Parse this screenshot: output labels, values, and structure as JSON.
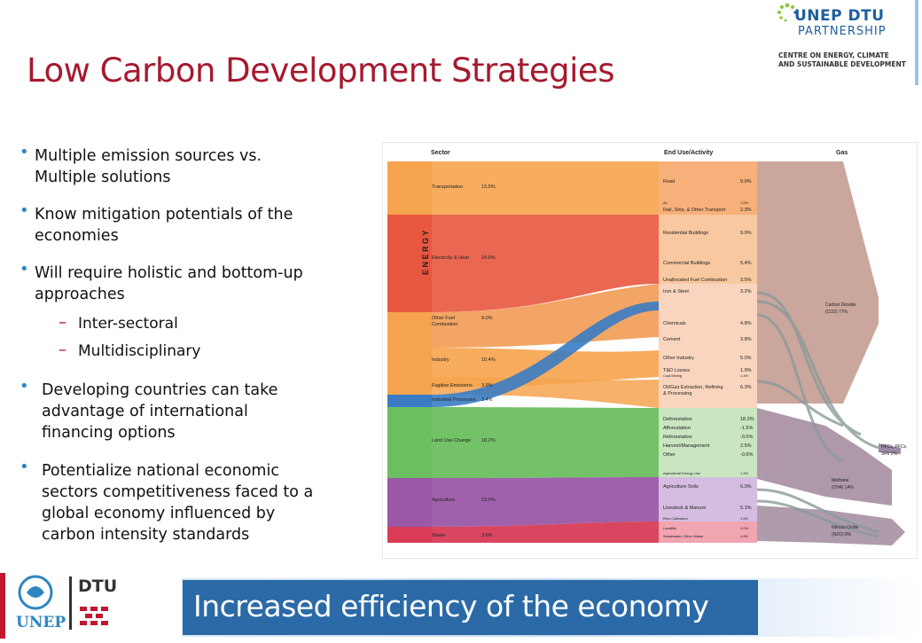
{
  "slide": {
    "title": "Low Carbon Development Strategies"
  },
  "logo": {
    "name": "UNEP DTU",
    "sub": "PARTNERSHIP",
    "line1": "CENTRE ON ENERGY, CLIMATE",
    "line2": "AND SUSTAINABLE DEVELOPMENT"
  },
  "bullets": [
    {
      "lines": [
        "Multiple emission sources vs.",
        "Multiple solutions"
      ]
    },
    {
      "lines": [
        "Know mitigation potentials of the",
        "economies"
      ]
    },
    {
      "lines": [
        "Will require holistic and bottom-up",
        "approaches"
      ]
    },
    {
      "lines": [
        "Developing countries  can take",
        "advantage of  international",
        "financing options"
      ]
    },
    {
      "lines": [
        "Potentialize national economic",
        "sectors competitiveness faced to a",
        "global economy influenced by",
        "carbon intensity standards"
      ]
    }
  ],
  "sub_bullets": [
    "Inter-sectoral",
    "Multidisciplinary"
  ],
  "diagram": {
    "headers": {
      "sector": "Sector",
      "end_use": "End Use/Activity",
      "gas": "Gas"
    },
    "energy_label": "E N E R G Y",
    "sectors": [
      {
        "name": "Transportation",
        "pct": "13.5%"
      },
      {
        "name": "Electricity & Heat",
        "pct": "24.6%"
      },
      {
        "name": "Other Fuel Combustion",
        "pct": "9.0%"
      },
      {
        "name": "Industry",
        "pct": "10.4%"
      },
      {
        "name": "Fugitive Emissions",
        "pct": "3.9%"
      },
      {
        "name": "Industrial Processes",
        "pct": "3.4%"
      },
      {
        "name": "Land Use Change",
        "pct": "18.2%"
      },
      {
        "name": "Agriculture",
        "pct": "13.5%"
      },
      {
        "name": "Waste",
        "pct": "3.6%"
      }
    ],
    "end_uses": [
      {
        "name": "Road",
        "pct": "9.9%"
      },
      {
        "name": "Air",
        "pct": "1.6%"
      },
      {
        "name": "Rail, Ship, & Other Transport",
        "pct": "2.3%"
      },
      {
        "name": "Residential Buildings",
        "pct": "9.9%"
      },
      {
        "name": "Commercial Buildings",
        "pct": "5.4%"
      },
      {
        "name": "Unallocated Fuel Combustion",
        "pct": "3.5%"
      },
      {
        "name": "Iron & Steel",
        "pct": "3.2%"
      },
      {
        "name": "Chemicals",
        "pct": "4.8%"
      },
      {
        "name": "Cement",
        "pct": "3.8%"
      },
      {
        "name": "Other Industry",
        "pct": "5.0%"
      },
      {
        "name": "T&D Losses",
        "pct": "1.9%"
      },
      {
        "name": "Coal Mining",
        "pct": "1.4%"
      },
      {
        "name": "Oil/Gas Extraction, Refining",
        "pct": "6.3%"
      },
      {
        "name": "& Processing",
        "pct": ""
      },
      {
        "name": "Deforestation",
        "pct": "18.3%"
      },
      {
        "name": "Afforestation",
        "pct": "-1.5%"
      },
      {
        "name": "Reforestation",
        "pct": "-0.5%"
      },
      {
        "name": "Harvest/Management",
        "pct": "2.5%"
      },
      {
        "name": "Other",
        "pct": "-0.6%"
      },
      {
        "name": "Agricultural Energy Use",
        "pct": "1.4%"
      },
      {
        "name": "Agriculture Soils",
        "pct": "6.0%"
      },
      {
        "name": "Livestock & Manure",
        "pct": "5.1%"
      },
      {
        "name": "Rice Cultivation",
        "pct": "1.5%"
      },
      {
        "name": "Landfills",
        "pct": "2.0%"
      },
      {
        "name": "Wastewater, Other Waste",
        "pct": "1.6%"
      }
    ],
    "gases": [
      {
        "name": "Carbon Dioxide",
        "formula": "(CO2) 77%"
      },
      {
        "name": "HFCs, PFCs,",
        "formula": "SF6 1%"
      },
      {
        "name": "Methane",
        "formula": "(CH4) 14%"
      },
      {
        "name": "Nitrous Oxide",
        "formula": "(N2O) 8%"
      }
    ]
  },
  "footer": {
    "unep": "UNEP",
    "dtu": "DTU",
    "banner": "Increased efficiency of the economy"
  },
  "colors": {
    "title": "#a6192e",
    "accent": "#2e86c1",
    "banner": "#2b6aa6",
    "transport": "#f6a34d",
    "electricity": "#e8573f",
    "industrial": "#3a7cc4",
    "land_use": "#6cbf5f",
    "agriculture": "#9b58a8",
    "waste": "#d83c57",
    "gas": "#c49c92"
  }
}
